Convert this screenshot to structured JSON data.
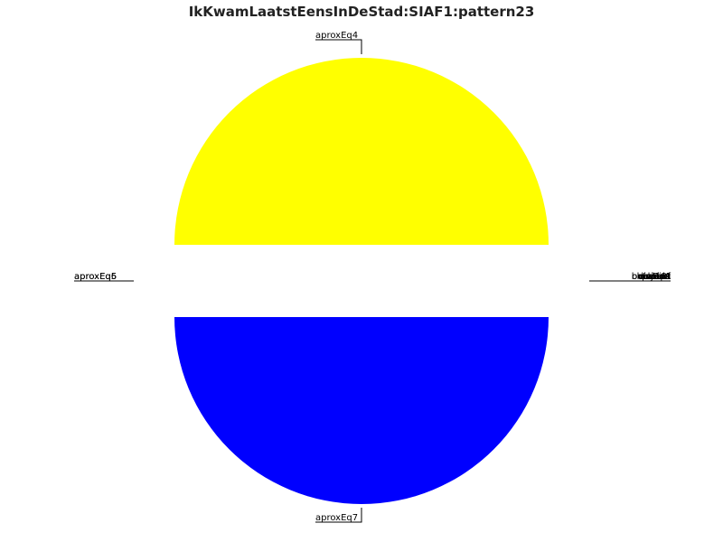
{
  "chart_data": {
    "type": "pie",
    "title": "IkKwamLaatstEensInDeStad:SIAF1:pattern23",
    "slices": [
      {
        "label": "aproxEq4",
        "value": 50,
        "color": "#ffff00"
      },
      {
        "label": "aproxEq7",
        "value": 50,
        "color": "#0000ff"
      }
    ],
    "side_labels_left": [
      "aproxEq5",
      "aproxEq6"
    ],
    "side_labels_right": [
      "between",
      "hasPart",
      "isA",
      "overlaps",
      "partOf",
      "inside",
      "meets",
      "disjoint",
      "related"
    ]
  }
}
